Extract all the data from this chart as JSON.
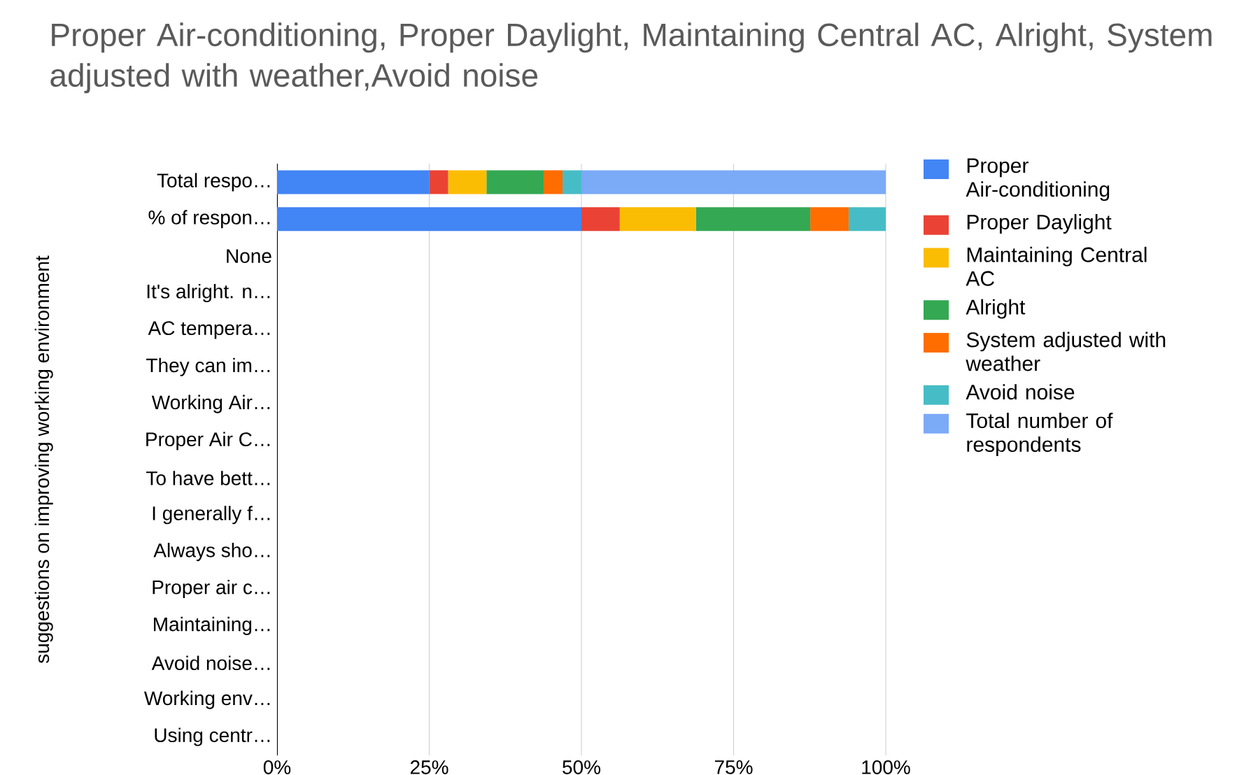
{
  "chart_data": {
    "type": "bar",
    "orientation": "horizontal",
    "stacked": true,
    "title": "Proper Air-conditioning, Proper Daylight, Maintaining Central AC, Alright, System  adjusted with weather,Avoid noise",
    "ylabel": "suggestions on improving working environment",
    "categories": [
      "Total respo…",
      "% of respon…",
      "None",
      "It's alright. n…",
      "AC tempera…",
      "They can im…",
      "Working Air…",
      "Proper Air C…",
      "To have bett…",
      "I generally f…",
      "Always sho…",
      "Proper air c…",
      "Maintaining…",
      "Avoid noise…",
      "Working env…",
      "Using centr…"
    ],
    "series": [
      {
        "name": "Proper Air-conditioning",
        "color": "#4285f4",
        "values": [
          25,
          50,
          null,
          null,
          null,
          null,
          null,
          null,
          null,
          null,
          null,
          null,
          null,
          null,
          null,
          null
        ]
      },
      {
        "name": "Proper Daylight",
        "color": "#ea4335",
        "values": [
          3.1,
          6.3,
          null,
          null,
          null,
          null,
          null,
          null,
          null,
          null,
          null,
          null,
          null,
          null,
          null,
          null
        ]
      },
      {
        "name": "Maintaining Central AC",
        "color": "#fbbc04",
        "values": [
          6.3,
          12.5,
          null,
          null,
          null,
          null,
          null,
          null,
          null,
          null,
          null,
          null,
          null,
          null,
          null,
          null
        ]
      },
      {
        "name": "Alright",
        "color": "#34a853",
        "values": [
          9.4,
          18.8,
          null,
          null,
          null,
          null,
          null,
          null,
          null,
          null,
          null,
          null,
          null,
          null,
          null,
          null
        ]
      },
      {
        "name": "System  adjusted with weather",
        "color": "#ff6d01",
        "values": [
          3.1,
          6.3,
          null,
          null,
          null,
          null,
          null,
          null,
          null,
          null,
          null,
          null,
          null,
          null,
          null,
          null
        ]
      },
      {
        "name": "Avoid noise",
        "color": "#46bdc6",
        "values": [
          3.1,
          6.3,
          null,
          null,
          null,
          null,
          null,
          null,
          null,
          null,
          null,
          null,
          null,
          null,
          null,
          null
        ]
      },
      {
        "name": "Total number of respondents",
        "color": "#7baaf7",
        "values": [
          50,
          null,
          null,
          null,
          null,
          null,
          null,
          null,
          null,
          null,
          null,
          null,
          null,
          null,
          null,
          null
        ]
      }
    ],
    "xlim": [
      0,
      100
    ],
    "xticks": [
      {
        "value": 0,
        "label": "0%"
      },
      {
        "value": 25,
        "label": "25%"
      },
      {
        "value": 50,
        "label": "50%"
      },
      {
        "value": 75,
        "label": "75%"
      },
      {
        "value": 100,
        "label": "100%"
      }
    ],
    "grid": "x",
    "legend": "right"
  }
}
